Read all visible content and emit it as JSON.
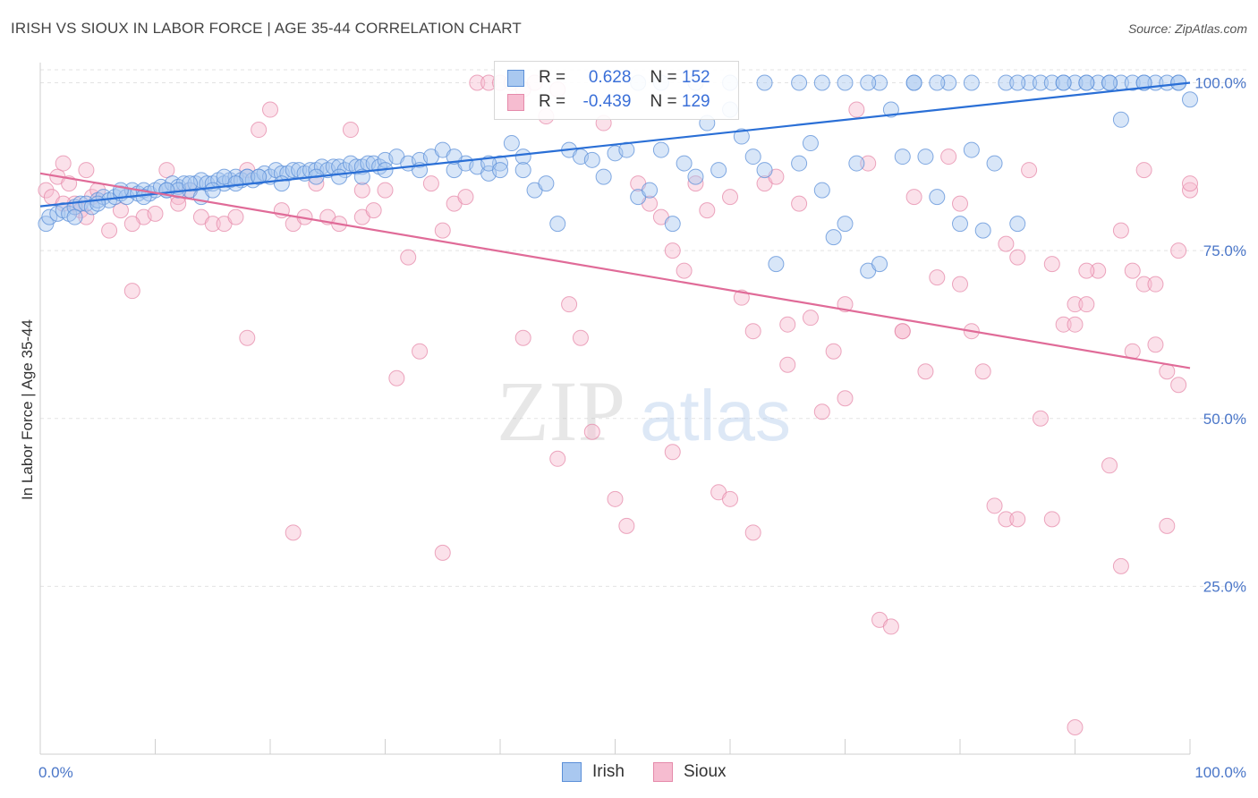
{
  "title": "IRISH VS SIOUX IN LABOR FORCE | AGE 35-44 CORRELATION CHART",
  "source": "Source: ZipAtlas.com",
  "watermark": {
    "zip": "ZIP",
    "atlas": "atlas"
  },
  "legend": {
    "series": [
      {
        "name": "Irish",
        "r_label": "R =",
        "r_value": "0.628",
        "n_label": "N =",
        "n_value": "152"
      },
      {
        "name": "Sioux",
        "r_label": "R =",
        "r_value": "-0.439",
        "n_label": "N =",
        "n_value": "129"
      }
    ]
  },
  "colors": {
    "irish_fill": "#a9c8f0",
    "irish_stroke": "#5b8fd8",
    "irish_line": "#2a6fd6",
    "sioux_fill": "#f6bcd0",
    "sioux_stroke": "#e58aaa",
    "sioux_line": "#e06b98",
    "grid": "#e3e3e3",
    "axis_label": "#4a76c8"
  },
  "chart_data": {
    "type": "scatter",
    "title": "IRISH VS SIOUX IN LABOR FORCE | AGE 35-44 CORRELATION CHART",
    "xlabel": "",
    "ylabel": "In Labor Force | Age 35-44",
    "xlim": [
      0,
      100
    ],
    "ylim": [
      0,
      103
    ],
    "x_tick_labels": [
      "0.0%",
      "100.0%"
    ],
    "y_ticks": [
      25,
      50,
      75,
      100
    ],
    "y_tick_labels": [
      "25.0%",
      "50.0%",
      "75.0%",
      "100.0%"
    ],
    "legend_position": "bottom",
    "series": [
      {
        "name": "Irish",
        "trend": {
          "x": [
            0,
            100
          ],
          "y": [
            81.6,
            100.0
          ]
        },
        "points": [
          [
            0.5,
            79
          ],
          [
            0.8,
            80
          ],
          [
            1.5,
            80.5
          ],
          [
            2,
            81
          ],
          [
            2.5,
            80.5
          ],
          [
            3,
            81.5
          ],
          [
            3.5,
            82
          ],
          [
            4,
            82
          ],
          [
            4.5,
            81.5
          ],
          [
            5,
            82.5
          ],
          [
            5.5,
            83
          ],
          [
            6,
            82.5
          ],
          [
            6.5,
            83
          ],
          [
            7,
            83.5
          ],
          [
            7.5,
            83
          ],
          [
            8,
            84
          ],
          [
            8.5,
            83.5
          ],
          [
            9,
            84
          ],
          [
            9.5,
            83.5
          ],
          [
            10,
            84
          ],
          [
            10.5,
            84.5
          ],
          [
            11,
            84
          ],
          [
            11.5,
            85
          ],
          [
            12,
            84.5
          ],
          [
            12.5,
            85
          ],
          [
            13,
            84
          ],
          [
            13.5,
            85
          ],
          [
            14,
            85.5
          ],
          [
            14.5,
            85
          ],
          [
            15,
            85
          ],
          [
            15.5,
            85.5
          ],
          [
            16,
            85
          ],
          [
            16.5,
            85.5
          ],
          [
            17,
            86
          ],
          [
            17.5,
            85.5
          ],
          [
            18,
            86
          ],
          [
            18.5,
            85.5
          ],
          [
            19,
            86
          ],
          [
            19.5,
            86.5
          ],
          [
            20,
            86
          ],
          [
            20.5,
            87
          ],
          [
            21,
            86.5
          ],
          [
            21.5,
            86.5
          ],
          [
            22,
            87
          ],
          [
            22.5,
            87
          ],
          [
            23,
            86.5
          ],
          [
            23.5,
            87
          ],
          [
            24,
            87
          ],
          [
            24.5,
            87.5
          ],
          [
            25,
            87
          ],
          [
            25.5,
            87.5
          ],
          [
            26,
            87.5
          ],
          [
            26.5,
            87
          ],
          [
            27,
            88
          ],
          [
            27.5,
            87.5
          ],
          [
            28,
            87.5
          ],
          [
            28.5,
            88
          ],
          [
            29,
            88
          ],
          [
            29.5,
            87.5
          ],
          [
            30,
            88.5
          ],
          [
            31,
            89
          ],
          [
            32,
            88
          ],
          [
            33,
            88.5
          ],
          [
            34,
            89
          ],
          [
            35,
            90
          ],
          [
            36,
            87
          ],
          [
            37,
            88
          ],
          [
            38,
            87.5
          ],
          [
            39,
            86.5
          ],
          [
            40,
            88
          ],
          [
            41,
            91
          ],
          [
            42,
            89
          ],
          [
            43,
            84
          ],
          [
            44,
            85
          ],
          [
            45,
            79
          ],
          [
            46,
            90
          ],
          [
            47,
            89
          ],
          [
            48,
            88.5
          ],
          [
            49,
            86
          ],
          [
            50,
            89.5
          ],
          [
            51,
            90
          ],
          [
            52,
            83
          ],
          [
            53,
            84
          ],
          [
            54,
            90
          ],
          [
            55,
            79
          ],
          [
            56,
            88
          ],
          [
            57,
            86
          ],
          [
            58,
            94
          ],
          [
            59,
            87
          ],
          [
            60,
            96
          ],
          [
            61,
            92
          ],
          [
            62,
            89
          ],
          [
            63,
            87
          ],
          [
            64,
            73
          ],
          [
            66,
            88
          ],
          [
            67,
            91
          ],
          [
            68,
            84
          ],
          [
            69,
            77
          ],
          [
            70,
            79
          ],
          [
            71,
            88
          ],
          [
            72,
            72
          ],
          [
            73,
            73
          ],
          [
            74,
            96
          ],
          [
            75,
            89
          ],
          [
            76,
            100
          ],
          [
            77,
            89
          ],
          [
            78,
            83
          ],
          [
            79,
            100
          ],
          [
            80,
            79
          ],
          [
            81,
            100
          ],
          [
            82,
            78
          ],
          [
            83,
            88
          ],
          [
            84,
            100
          ],
          [
            85,
            79
          ],
          [
            86,
            100
          ],
          [
            87,
            100
          ],
          [
            88,
            100
          ],
          [
            89,
            100
          ],
          [
            90,
            100
          ],
          [
            91,
            100
          ],
          [
            92,
            100
          ],
          [
            93,
            100
          ],
          [
            94,
            100
          ],
          [
            95,
            100
          ],
          [
            96,
            100
          ],
          [
            97,
            100
          ],
          [
            98,
            100
          ],
          [
            99,
            100
          ],
          [
            100,
            97.5
          ],
          [
            52,
            100
          ],
          [
            54,
            100
          ],
          [
            57,
            100
          ],
          [
            60,
            100
          ],
          [
            63,
            100
          ],
          [
            66,
            100
          ],
          [
            70,
            100
          ],
          [
            73,
            100
          ],
          [
            76,
            100
          ],
          [
            78,
            100
          ],
          [
            94,
            94.5
          ],
          [
            81,
            90
          ],
          [
            85,
            100
          ],
          [
            89,
            100
          ],
          [
            93,
            100
          ],
          [
            91,
            100
          ],
          [
            68,
            100
          ],
          [
            72,
            100
          ],
          [
            99,
            100
          ],
          [
            96,
            100
          ],
          [
            26,
            86
          ],
          [
            12,
            84
          ],
          [
            14,
            83
          ],
          [
            16,
            86
          ],
          [
            18,
            86
          ],
          [
            21,
            85
          ],
          [
            24,
            86
          ],
          [
            28,
            86
          ],
          [
            30,
            87
          ],
          [
            33,
            87
          ],
          [
            36,
            89
          ],
          [
            39,
            88
          ],
          [
            40,
            87
          ],
          [
            42,
            87
          ],
          [
            3,
            80
          ],
          [
            5,
            82
          ],
          [
            7,
            84
          ],
          [
            9,
            83
          ],
          [
            11,
            84
          ],
          [
            13,
            85
          ],
          [
            15,
            84
          ],
          [
            17,
            85
          ],
          [
            19,
            86
          ]
        ]
      },
      {
        "name": "Sioux",
        "trend": {
          "x": [
            0,
            100
          ],
          "y": [
            86.5,
            57.5
          ]
        },
        "points": [
          [
            0.5,
            84
          ],
          [
            1,
            83
          ],
          [
            1.5,
            86
          ],
          [
            2,
            88
          ],
          [
            2.5,
            85
          ],
          [
            3,
            82
          ],
          [
            3.5,
            81
          ],
          [
            4,
            87
          ],
          [
            4.5,
            83
          ],
          [
            5,
            84
          ],
          [
            6,
            78
          ],
          [
            7,
            81
          ],
          [
            8,
            69
          ],
          [
            9,
            80
          ],
          [
            10,
            80.5
          ],
          [
            11,
            87
          ],
          [
            12,
            83
          ],
          [
            13,
            84
          ],
          [
            14,
            80
          ],
          [
            15,
            79
          ],
          [
            16,
            79
          ],
          [
            17,
            80
          ],
          [
            18,
            87
          ],
          [
            19,
            93
          ],
          [
            20,
            96
          ],
          [
            21,
            81
          ],
          [
            22,
            79
          ],
          [
            23,
            80
          ],
          [
            24,
            85
          ],
          [
            25,
            80
          ],
          [
            26,
            79
          ],
          [
            27,
            93
          ],
          [
            28,
            80
          ],
          [
            29,
            81
          ],
          [
            30,
            84
          ],
          [
            31,
            56
          ],
          [
            32,
            74
          ],
          [
            33,
            60
          ],
          [
            34,
            85
          ],
          [
            35,
            78
          ],
          [
            36,
            82
          ],
          [
            37,
            83
          ],
          [
            38,
            100
          ],
          [
            39,
            100
          ],
          [
            40,
            100
          ],
          [
            41,
            100
          ],
          [
            42,
            99
          ],
          [
            43,
            100
          ],
          [
            44,
            95
          ],
          [
            45,
            99
          ],
          [
            46,
            67
          ],
          [
            47,
            62
          ],
          [
            48,
            48
          ],
          [
            49,
            94
          ],
          [
            50,
            38
          ],
          [
            51,
            34
          ],
          [
            52,
            85
          ],
          [
            53,
            82
          ],
          [
            54,
            80
          ],
          [
            55,
            75
          ],
          [
            56,
            72
          ],
          [
            57,
            85
          ],
          [
            58,
            81
          ],
          [
            59,
            39
          ],
          [
            60,
            83
          ],
          [
            61,
            68
          ],
          [
            62,
            63
          ],
          [
            63,
            85
          ],
          [
            64,
            86
          ],
          [
            65,
            64
          ],
          [
            66,
            82
          ],
          [
            67,
            65
          ],
          [
            68,
            51
          ],
          [
            69,
            60
          ],
          [
            70,
            67
          ],
          [
            71,
            96
          ],
          [
            72,
            88
          ],
          [
            73,
            20
          ],
          [
            74,
            19
          ],
          [
            75,
            63
          ],
          [
            76,
            83
          ],
          [
            77,
            57
          ],
          [
            78,
            71
          ],
          [
            79,
            89
          ],
          [
            80,
            82
          ],
          [
            81,
            63
          ],
          [
            82,
            57
          ],
          [
            83,
            37
          ],
          [
            84,
            35
          ],
          [
            85,
            35
          ],
          [
            86,
            87
          ],
          [
            87,
            50
          ],
          [
            88,
            35
          ],
          [
            89,
            64
          ],
          [
            90,
            67
          ],
          [
            91,
            67
          ],
          [
            92,
            72
          ],
          [
            93,
            43
          ],
          [
            94,
            78
          ],
          [
            95,
            72
          ],
          [
            96,
            70
          ],
          [
            97,
            61
          ],
          [
            98,
            57
          ],
          [
            99,
            55
          ],
          [
            100,
            84
          ],
          [
            84,
            76
          ],
          [
            88,
            73
          ],
          [
            91,
            72
          ],
          [
            97,
            70
          ],
          [
            100,
            85
          ],
          [
            90,
            4
          ],
          [
            94,
            28
          ],
          [
            96,
            87
          ],
          [
            98,
            34
          ],
          [
            99,
            75
          ],
          [
            2,
            82
          ],
          [
            4,
            80
          ],
          [
            8,
            79
          ],
          [
            12,
            82
          ],
          [
            18,
            62
          ],
          [
            22,
            33
          ],
          [
            28,
            84
          ],
          [
            35,
            30
          ],
          [
            45,
            44
          ],
          [
            55,
            45
          ],
          [
            60,
            38
          ],
          [
            65,
            58
          ],
          [
            70,
            53
          ],
          [
            75,
            63
          ],
          [
            80,
            70
          ],
          [
            85,
            74
          ],
          [
            90,
            64
          ],
          [
            95,
            60
          ],
          [
            42,
            62
          ],
          [
            62,
            33
          ]
        ]
      }
    ]
  }
}
